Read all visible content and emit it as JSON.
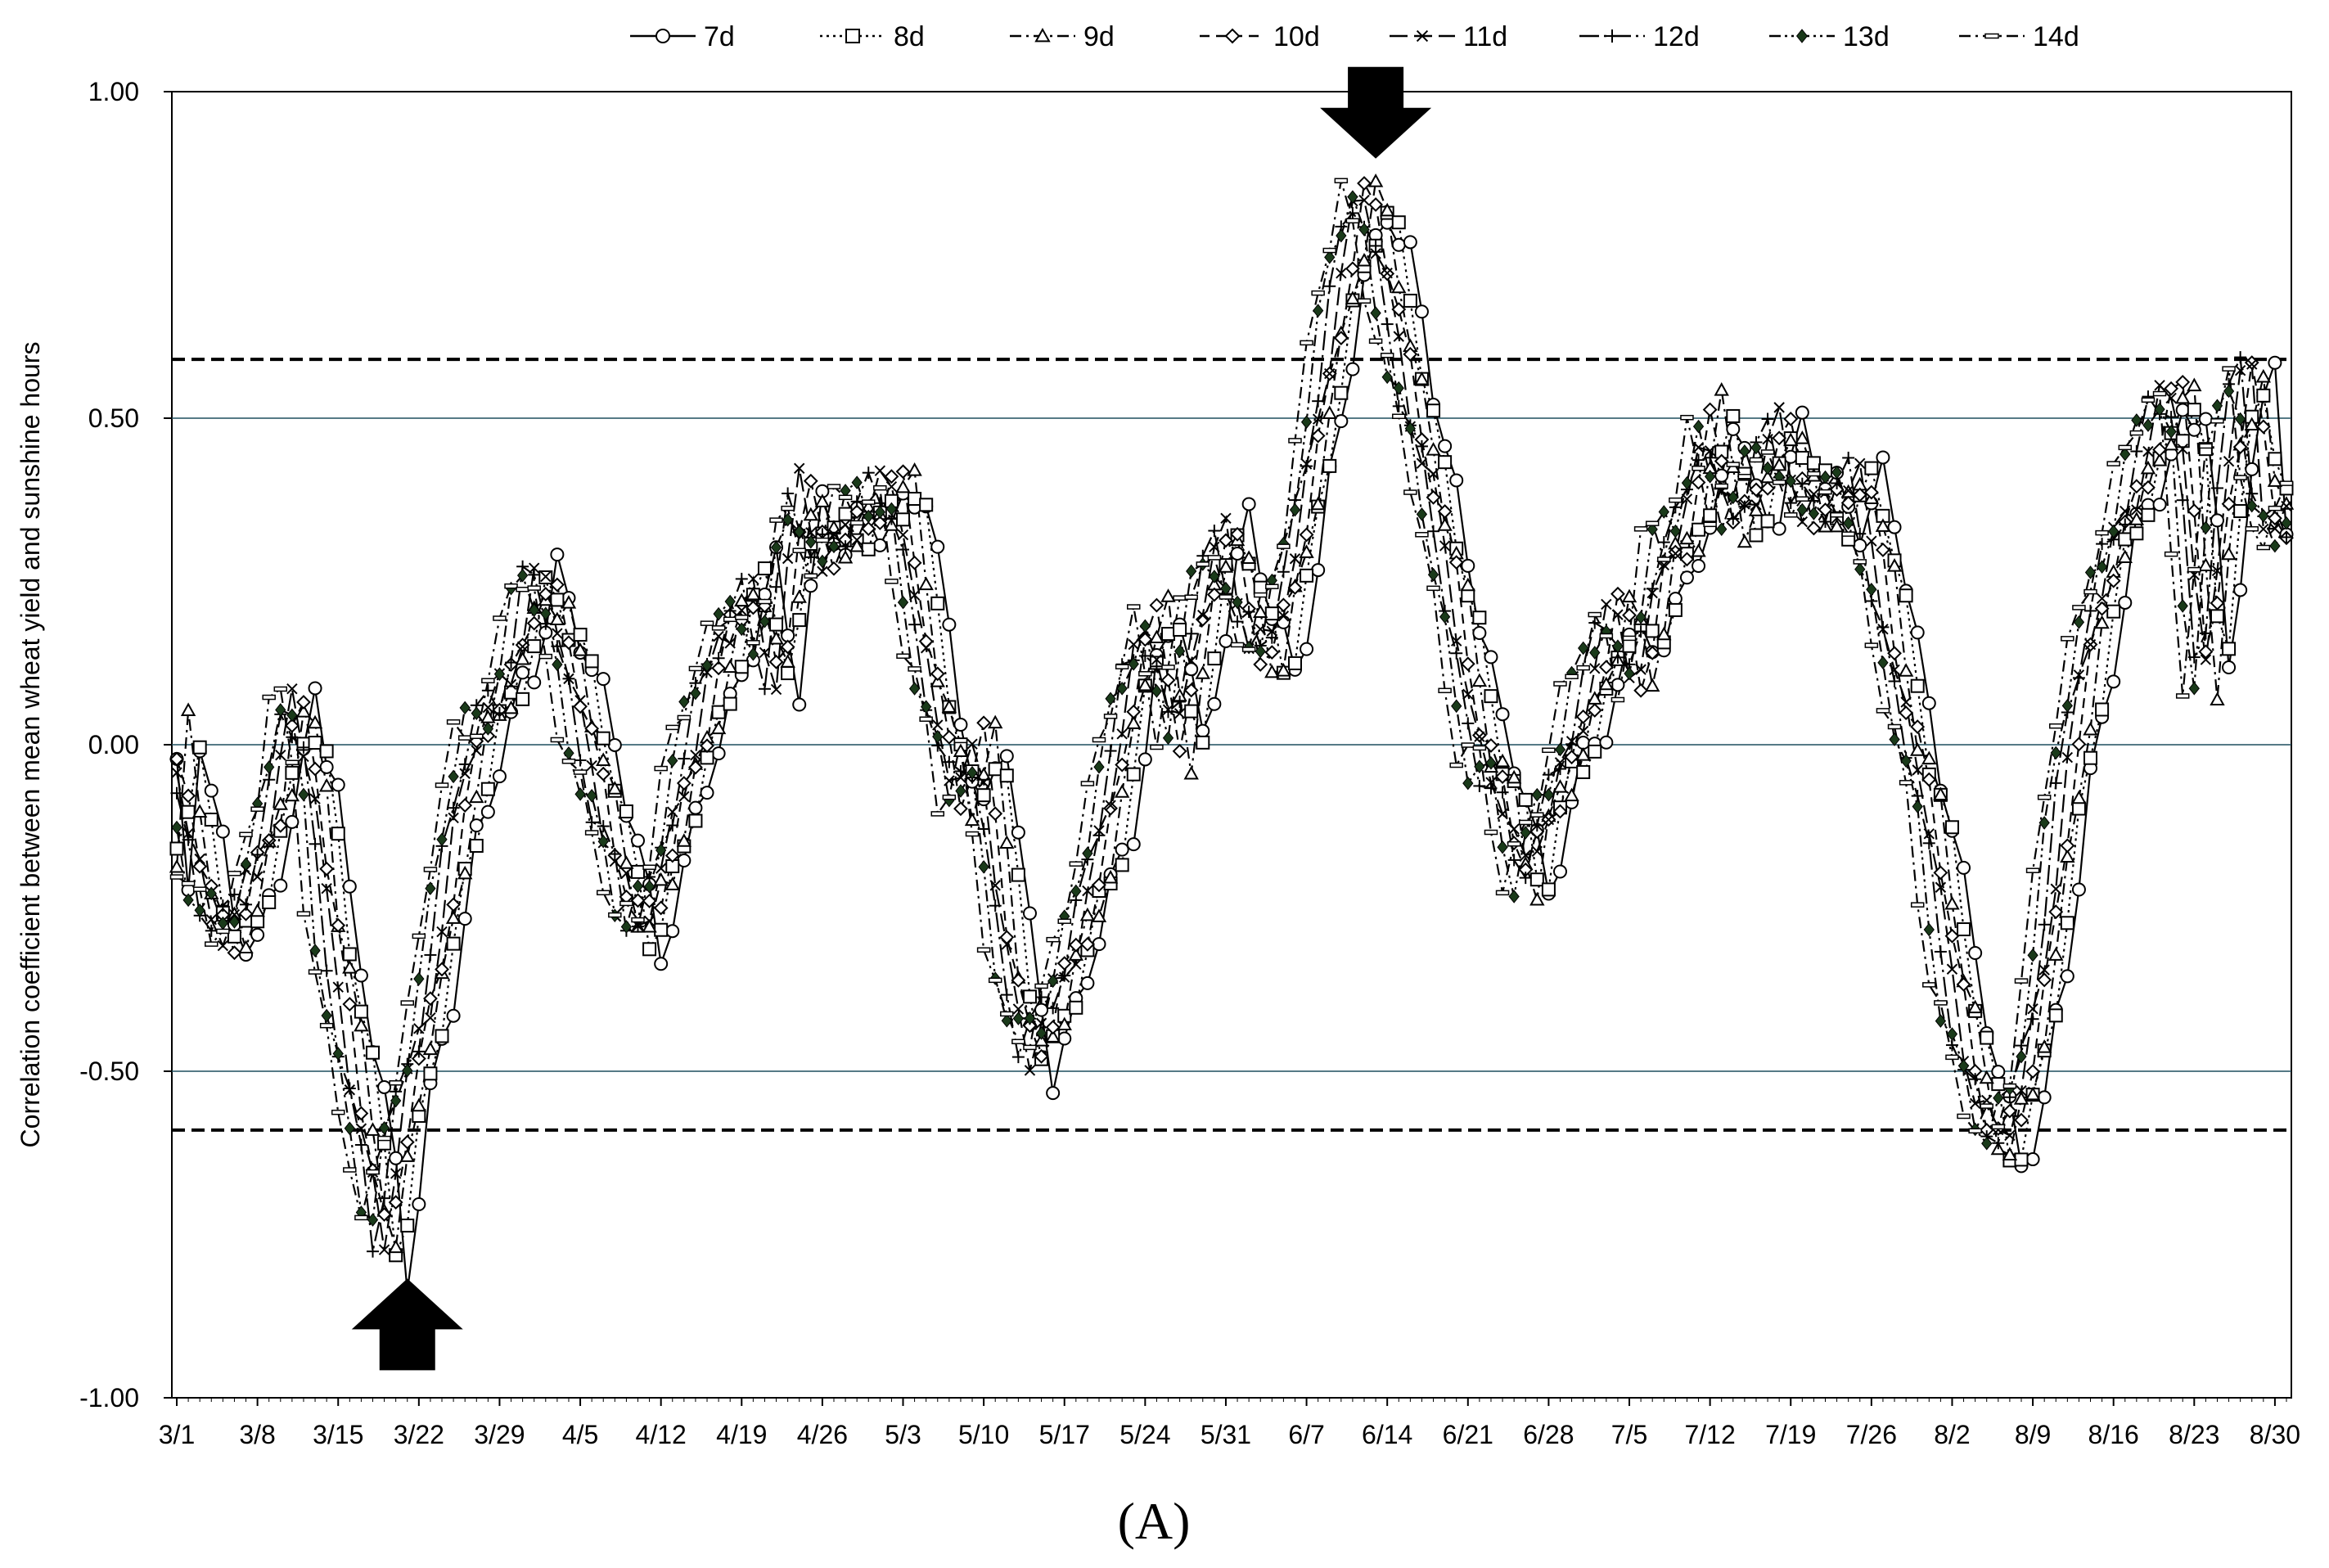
{
  "chart_data": {
    "type": "line",
    "title": "",
    "panel_label": "(A)",
    "xlabel": "",
    "ylabel": "Correlation coefficient between mean wheat yield and sunshine hours",
    "ylim": [
      -1.0,
      1.0
    ],
    "y_ticks": [
      "1.00",
      "0.50",
      "0.00",
      "-0.50",
      "-1.00"
    ],
    "x_ticks": [
      "3/1",
      "3/8",
      "3/15",
      "3/22",
      "3/29",
      "4/5",
      "4/12",
      "4/19",
      "4/26",
      "5/3",
      "5/10",
      "5/17",
      "5/24",
      "5/31",
      "6/7",
      "6/14",
      "6/21",
      "6/28",
      "7/5",
      "7/12",
      "7/19",
      "7/26",
      "8/2",
      "8/9",
      "8/16",
      "8/23",
      "8/30"
    ],
    "x_start": "3/1",
    "x_end": "8/31",
    "grid": "horizontal at 0.50, 0.00, -0.50",
    "significance_lines": [
      0.59,
      -0.59
    ],
    "annotations": [
      {
        "type": "arrow-up",
        "date": "3/21",
        "value": -0.79
      },
      {
        "type": "arrow-down",
        "date": "6/13",
        "value": 0.89
      }
    ],
    "legend_position": "top",
    "series": [
      {
        "name": "7d",
        "marker": "circle",
        "dash": "solid"
      },
      {
        "name": "8d",
        "marker": "square",
        "dash": "dotted"
      },
      {
        "name": "9d",
        "marker": "triangle",
        "dash": "dash-dot"
      },
      {
        "name": "10d",
        "marker": "diamond",
        "dash": "dashed"
      },
      {
        "name": "11d",
        "marker": "x",
        "dash": "long-dash"
      },
      {
        "name": "12d",
        "marker": "plus",
        "dash": "long-dash-dot"
      },
      {
        "name": "13d",
        "marker": "filled-diamond",
        "dash": "dash-dot-dot"
      },
      {
        "name": "14d",
        "marker": "bar",
        "dash": "dash-dot"
      }
    ],
    "base_curve_7d": [
      {
        "x": "3/1",
        "y": -0.04
      },
      {
        "x": "3/2",
        "y": -0.22
      },
      {
        "x": "3/3",
        "y": 0.01
      },
      {
        "x": "3/4",
        "y": -0.1
      },
      {
        "x": "3/6",
        "y": -0.25
      },
      {
        "x": "3/8",
        "y": -0.3
      },
      {
        "x": "3/10",
        "y": -0.2
      },
      {
        "x": "3/12",
        "y": -0.05
      },
      {
        "x": "3/13",
        "y": 0.09
      },
      {
        "x": "3/15",
        "y": -0.05
      },
      {
        "x": "3/16",
        "y": -0.25
      },
      {
        "x": "3/18",
        "y": -0.46
      },
      {
        "x": "3/20",
        "y": -0.65
      },
      {
        "x": "3/21",
        "y": -0.79
      },
      {
        "x": "3/23",
        "y": -0.55
      },
      {
        "x": "3/25",
        "y": -0.4
      },
      {
        "x": "3/27",
        "y": -0.15
      },
      {
        "x": "3/29",
        "y": 0.0
      },
      {
        "x": "4/1",
        "y": 0.1
      },
      {
        "x": "4/3",
        "y": 0.27
      },
      {
        "x": "4/5",
        "y": 0.19
      },
      {
        "x": "4/7",
        "y": 0.05
      },
      {
        "x": "4/10",
        "y": -0.15
      },
      {
        "x": "4/12",
        "y": -0.3
      },
      {
        "x": "4/14",
        "y": -0.22
      },
      {
        "x": "4/16",
        "y": -0.05
      },
      {
        "x": "4/19",
        "y": 0.12
      },
      {
        "x": "4/22",
        "y": 0.25
      },
      {
        "x": "4/24",
        "y": 0.1
      },
      {
        "x": "4/26",
        "y": 0.38
      },
      {
        "x": "4/28",
        "y": 0.29
      },
      {
        "x": "5/1",
        "y": 0.35
      },
      {
        "x": "5/5",
        "y": 0.38
      },
      {
        "x": "5/7",
        "y": 0.15
      },
      {
        "x": "5/10",
        "y": -0.1
      },
      {
        "x": "5/12",
        "y": 0.0
      },
      {
        "x": "5/14",
        "y": -0.3
      },
      {
        "x": "5/16",
        "y": -0.48
      },
      {
        "x": "5/18",
        "y": -0.42
      },
      {
        "x": "5/20",
        "y": -0.3
      },
      {
        "x": "5/23",
        "y": -0.1
      },
      {
        "x": "5/25",
        "y": 0.1
      },
      {
        "x": "5/27",
        "y": 0.2
      },
      {
        "x": "5/29",
        "y": 0.0
      },
      {
        "x": "5/31",
        "y": 0.2
      },
      {
        "x": "6/2",
        "y": 0.33
      },
      {
        "x": "6/4",
        "y": 0.2
      },
      {
        "x": "6/6",
        "y": 0.13
      },
      {
        "x": "6/8",
        "y": 0.26
      },
      {
        "x": "6/10",
        "y": 0.49
      },
      {
        "x": "6/12",
        "y": 0.71
      },
      {
        "x": "6/14",
        "y": 0.84
      },
      {
        "x": "6/16",
        "y": 0.72
      },
      {
        "x": "6/18",
        "y": 0.55
      },
      {
        "x": "6/20",
        "y": 0.39
      },
      {
        "x": "6/22",
        "y": 0.2
      },
      {
        "x": "6/24",
        "y": 0.0
      },
      {
        "x": "6/26",
        "y": -0.05
      },
      {
        "x": "6/28",
        "y": -0.23
      },
      {
        "x": "6/30",
        "y": -0.1
      },
      {
        "x": "7/2",
        "y": 0.0
      },
      {
        "x": "7/4",
        "y": 0.1
      },
      {
        "x": "7/6",
        "y": 0.2
      },
      {
        "x": "7/8",
        "y": 0.1
      },
      {
        "x": "7/10",
        "y": 0.3
      },
      {
        "x": "7/12",
        "y": 0.31
      },
      {
        "x": "7/14",
        "y": 0.5
      },
      {
        "x": "7/16",
        "y": 0.36
      },
      {
        "x": "7/18",
        "y": 0.38
      },
      {
        "x": "7/20",
        "y": 0.48
      },
      {
        "x": "7/22",
        "y": 0.39
      },
      {
        "x": "7/25",
        "y": 0.36
      },
      {
        "x": "7/27",
        "y": 0.4
      },
      {
        "x": "7/29",
        "y": 0.25
      },
      {
        "x": "7/31",
        "y": 0.05
      },
      {
        "x": "8/2",
        "y": -0.1
      },
      {
        "x": "8/4",
        "y": -0.35
      },
      {
        "x": "8/6",
        "y": -0.5
      },
      {
        "x": "8/8",
        "y": -0.62
      },
      {
        "x": "8/10",
        "y": -0.56
      },
      {
        "x": "8/12",
        "y": -0.35
      },
      {
        "x": "8/14",
        "y": -0.05
      },
      {
        "x": "8/16",
        "y": 0.14
      },
      {
        "x": "8/18",
        "y": 0.3
      },
      {
        "x": "8/20",
        "y": 0.4
      },
      {
        "x": "8/22",
        "y": 0.5
      },
      {
        "x": "8/24",
        "y": 0.52
      },
      {
        "x": "8/26",
        "y": 0.08
      },
      {
        "x": "8/28",
        "y": 0.45
      },
      {
        "x": "8/30",
        "y": 0.59
      },
      {
        "x": "8/31",
        "y": 0.35
      }
    ]
  }
}
